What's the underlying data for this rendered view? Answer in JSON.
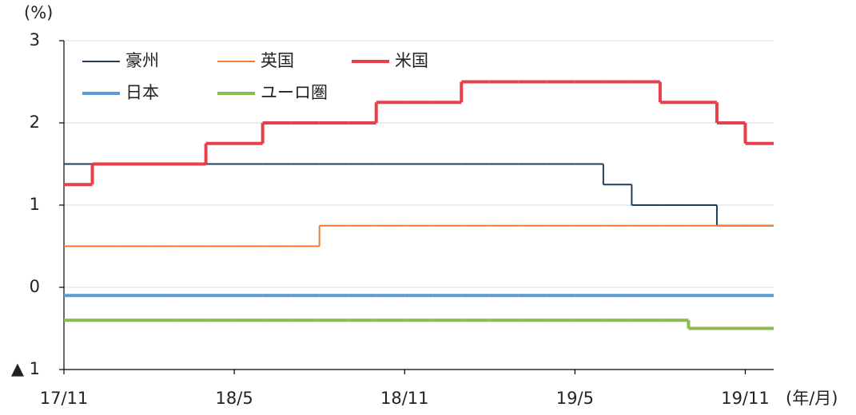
{
  "chart_data": {
    "type": "line",
    "step": true,
    "y_unit": "(%)",
    "x_unit": "(年/月)",
    "x": [
      "17/11",
      "17/12",
      "18/1",
      "18/2",
      "18/3",
      "18/4",
      "18/5",
      "18/6",
      "18/7",
      "18/8",
      "18/9",
      "18/10",
      "18/11",
      "18/12",
      "19/1",
      "19/2",
      "19/3",
      "19/4",
      "19/5",
      "19/6",
      "19/7",
      "19/8",
      "19/9",
      "19/10",
      "19/11"
    ],
    "xlim": [
      "17/11",
      "19/12"
    ],
    "xticks": [
      "17/11",
      "18/5",
      "18/11",
      "19/5",
      "19/11"
    ],
    "ylim": [
      -1,
      3
    ],
    "yticks": [
      {
        "value": -1,
        "label": "▲ 1"
      },
      0,
      1,
      2,
      3
    ],
    "grid": true,
    "series": [
      {
        "name": "豪州",
        "color": "#1f3d5c",
        "width": 2,
        "values": [
          1.5,
          1.5,
          1.5,
          1.5,
          1.5,
          1.5,
          1.5,
          1.5,
          1.5,
          1.5,
          1.5,
          1.5,
          1.5,
          1.5,
          1.5,
          1.5,
          1.5,
          1.5,
          1.5,
          1.25,
          1.0,
          1.0,
          1.0,
          0.75,
          0.75
        ]
      },
      {
        "name": "英国",
        "color": "#ed7d31",
        "width": 2,
        "values": [
          0.5,
          0.5,
          0.5,
          0.5,
          0.5,
          0.5,
          0.5,
          0.5,
          0.5,
          0.75,
          0.75,
          0.75,
          0.75,
          0.75,
          0.75,
          0.75,
          0.75,
          0.75,
          0.75,
          0.75,
          0.75,
          0.75,
          0.75,
          0.75,
          0.75
        ]
      },
      {
        "name": "米国",
        "color": "#e8404a",
        "width": 4,
        "values": [
          1.25,
          1.5,
          1.5,
          1.5,
          1.5,
          1.75,
          1.75,
          2.0,
          2.0,
          2.0,
          2.0,
          2.25,
          2.25,
          2.25,
          2.5,
          2.5,
          2.5,
          2.5,
          2.5,
          2.5,
          2.5,
          2.25,
          2.25,
          2.0,
          1.75
        ]
      },
      {
        "name": "日本",
        "color": "#5b9bd5",
        "width": 4,
        "values": [
          -0.1,
          -0.1,
          -0.1,
          -0.1,
          -0.1,
          -0.1,
          -0.1,
          -0.1,
          -0.1,
          -0.1,
          -0.1,
          -0.1,
          -0.1,
          -0.1,
          -0.1,
          -0.1,
          -0.1,
          -0.1,
          -0.1,
          -0.1,
          -0.1,
          -0.1,
          -0.1,
          -0.1,
          -0.1
        ]
      },
      {
        "name": "ユーロ圏",
        "color": "#8db954",
        "width": 4,
        "values": [
          -0.4,
          -0.4,
          -0.4,
          -0.4,
          -0.4,
          -0.4,
          -0.4,
          -0.4,
          -0.4,
          -0.4,
          -0.4,
          -0.4,
          -0.4,
          -0.4,
          -0.4,
          -0.4,
          -0.4,
          -0.4,
          -0.4,
          -0.4,
          -0.4,
          -0.4,
          -0.5,
          -0.5,
          -0.5
        ]
      }
    ]
  }
}
